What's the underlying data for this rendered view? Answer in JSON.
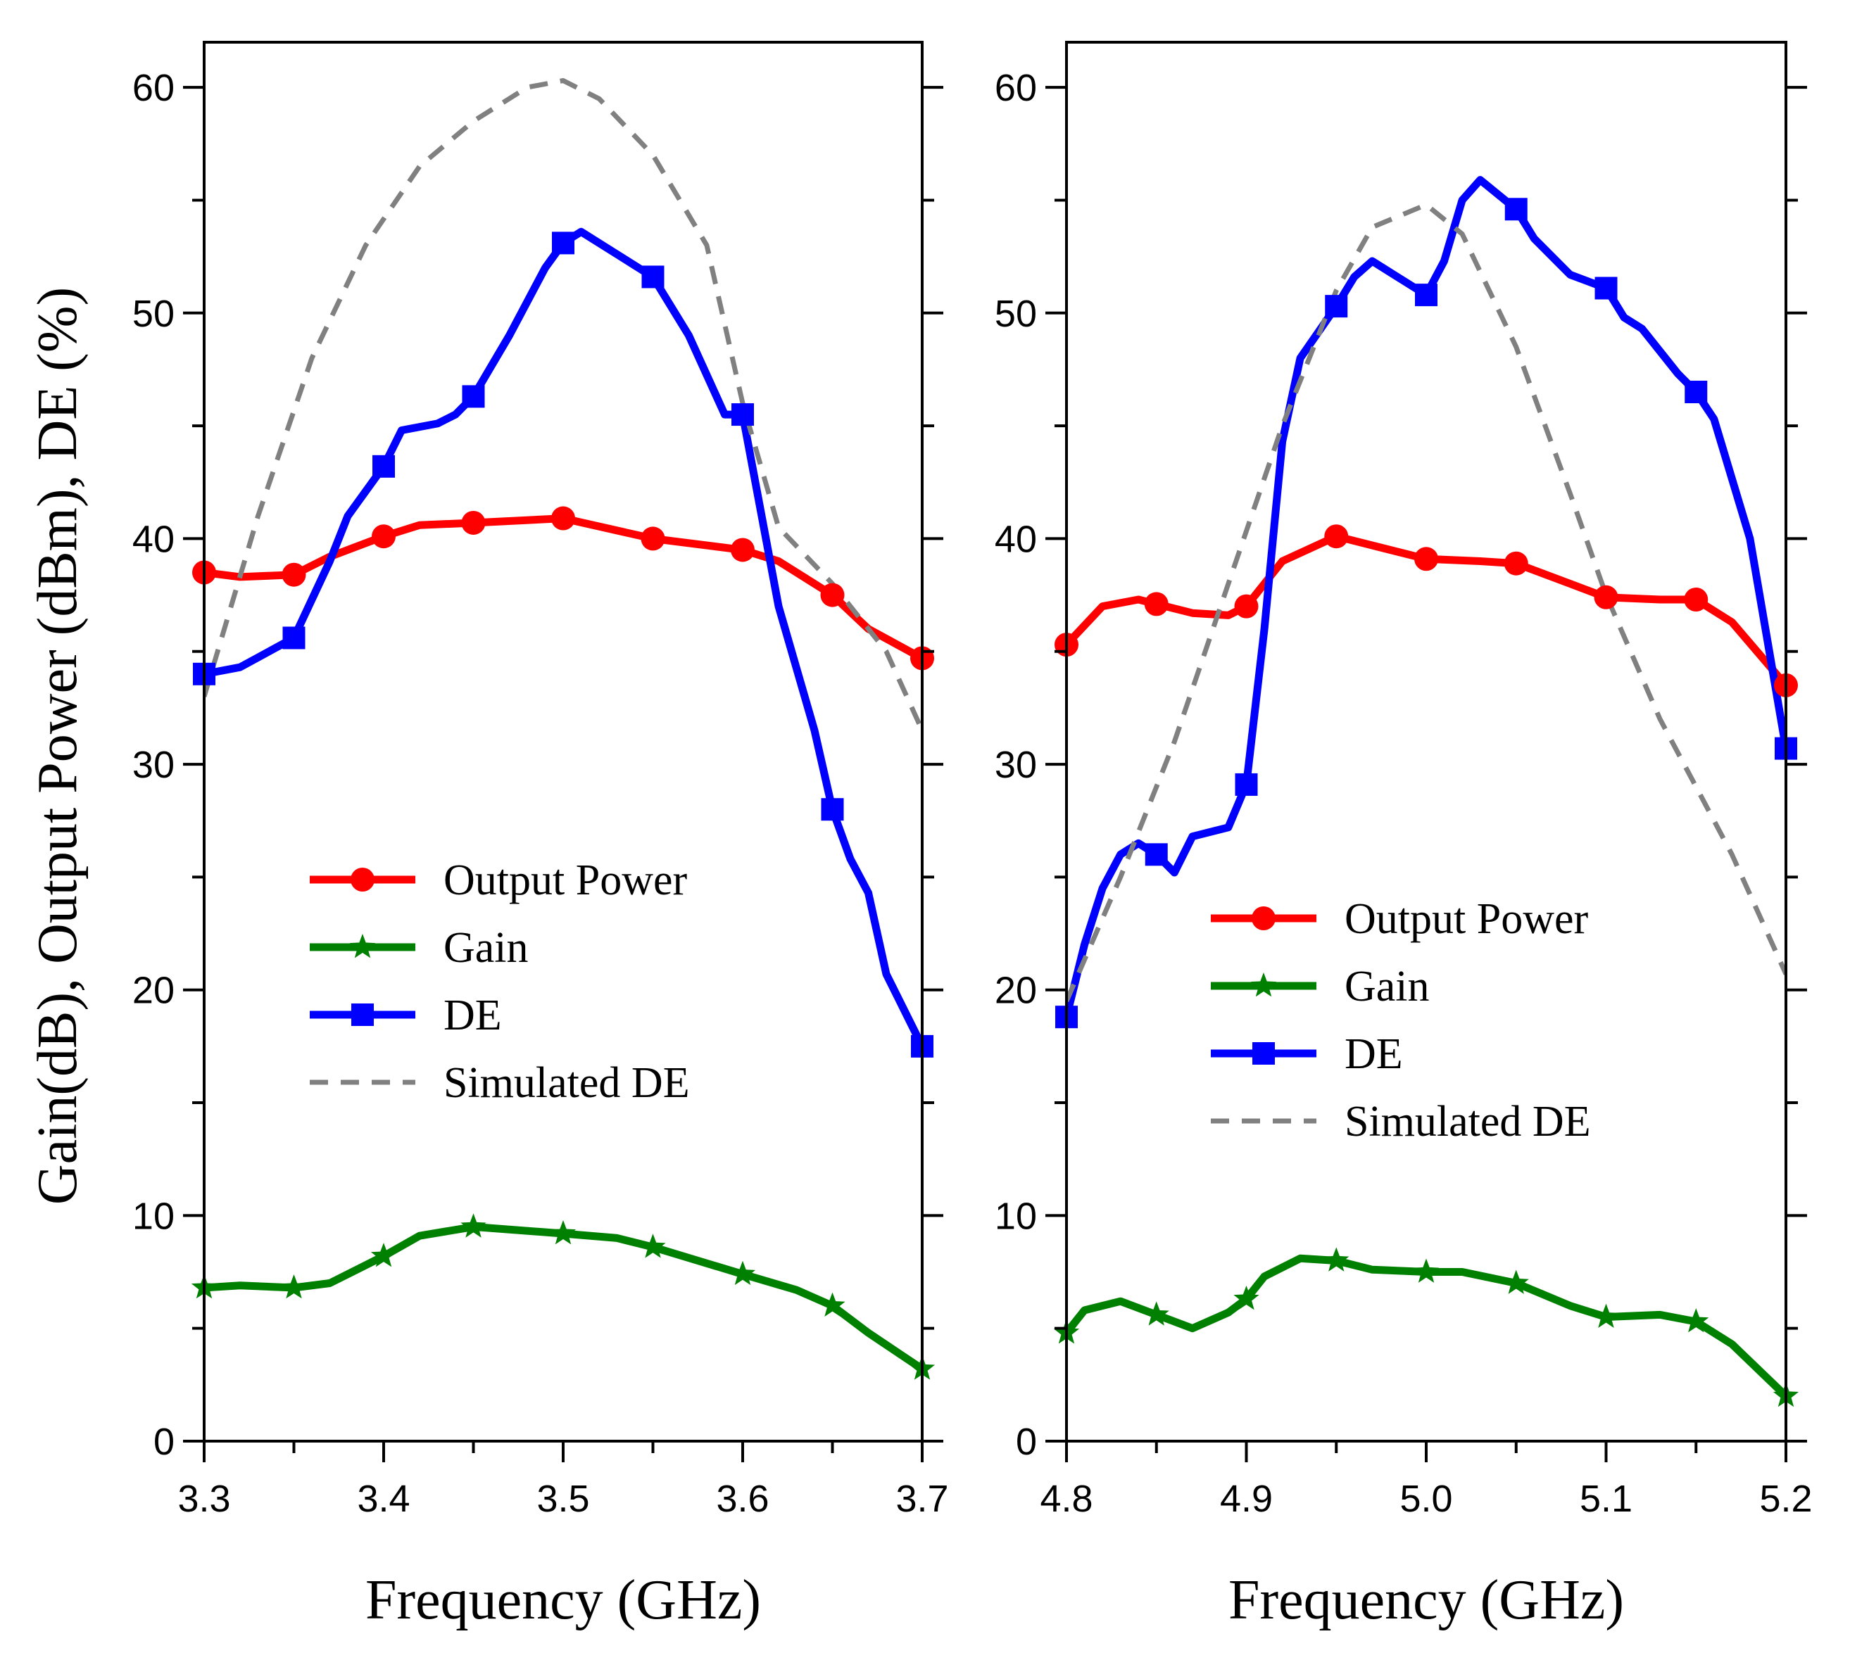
{
  "y_axis_title": "Gain(dB), Output Power (dBm), DE (%)",
  "colors": {
    "output_power": "#ff0000",
    "gain": "#008000",
    "de": "#0000ff",
    "simulated_de": "#808080"
  },
  "chart_data": [
    {
      "type": "line",
      "xlabel": "Frequency (GHz)",
      "ylabel": "Gain(dB), Output Power (dBm), DE (%)",
      "xlim": [
        3.3,
        3.7
      ],
      "ylim": [
        0,
        62
      ],
      "xticks": [
        3.3,
        3.4,
        3.5,
        3.6,
        3.7
      ],
      "xtick_labels": [
        "3.3",
        "3.4",
        "3.5",
        "3.6",
        "3.7"
      ],
      "yticks": [
        0,
        10,
        20,
        30,
        40,
        50,
        60
      ],
      "ytick_labels": [
        "0",
        "10",
        "20",
        "30",
        "40",
        "50",
        "60"
      ],
      "legend": {
        "position": "center-left",
        "entries": [
          "Output Power",
          "Gain",
          "DE",
          "Simulated DE"
        ]
      },
      "series": [
        {
          "name": "Output Power",
          "marker": "circle",
          "x": [
            3.3,
            3.32,
            3.35,
            3.37,
            3.4,
            3.42,
            3.45,
            3.5,
            3.55,
            3.6,
            3.62,
            3.65,
            3.67,
            3.7
          ],
          "values": [
            38.5,
            38.3,
            38.4,
            39.2,
            40.1,
            40.6,
            40.7,
            40.9,
            40.0,
            39.5,
            39.0,
            37.5,
            36.0,
            34.7
          ],
          "marker_x": [
            3.3,
            3.35,
            3.4,
            3.45,
            3.5,
            3.55,
            3.6,
            3.65,
            3.7
          ]
        },
        {
          "name": "Gain",
          "marker": "star",
          "x": [
            3.3,
            3.32,
            3.35,
            3.37,
            3.4,
            3.42,
            3.45,
            3.5,
            3.53,
            3.55,
            3.6,
            3.63,
            3.65,
            3.67,
            3.7
          ],
          "values": [
            6.8,
            6.9,
            6.8,
            7.0,
            8.2,
            9.1,
            9.5,
            9.2,
            9.0,
            8.6,
            7.4,
            6.7,
            6.0,
            4.8,
            3.2
          ],
          "marker_x": [
            3.3,
            3.35,
            3.4,
            3.45,
            3.5,
            3.55,
            3.6,
            3.65,
            3.7
          ]
        },
        {
          "name": "DE",
          "marker": "square",
          "x": [
            3.3,
            3.32,
            3.35,
            3.37,
            3.38,
            3.4,
            3.41,
            3.43,
            3.44,
            3.45,
            3.47,
            3.49,
            3.5,
            3.51,
            3.53,
            3.55,
            3.57,
            3.59,
            3.6,
            3.62,
            3.64,
            3.65,
            3.66,
            3.67,
            3.68,
            3.7
          ],
          "values": [
            34.0,
            34.3,
            35.6,
            39.0,
            41.0,
            43.2,
            44.8,
            45.1,
            45.5,
            46.3,
            49.0,
            52.0,
            53.1,
            53.6,
            52.6,
            51.6,
            49.0,
            45.5,
            45.5,
            37.0,
            31.5,
            28.0,
            25.8,
            24.3,
            20.7,
            17.5
          ],
          "marker_x": [
            3.3,
            3.35,
            3.4,
            3.45,
            3.5,
            3.55,
            3.6,
            3.65,
            3.7
          ]
        },
        {
          "name": "Simulated DE",
          "style": "dashed",
          "x": [
            3.3,
            3.33,
            3.36,
            3.39,
            3.42,
            3.45,
            3.48,
            3.5,
            3.52,
            3.55,
            3.58,
            3.6,
            3.62,
            3.65,
            3.68,
            3.7
          ],
          "values": [
            33.0,
            41.0,
            48.0,
            53.0,
            56.5,
            58.5,
            60.0,
            60.3,
            59.5,
            57.0,
            53.0,
            46.0,
            40.5,
            38.0,
            35.0,
            31.5
          ]
        }
      ]
    },
    {
      "type": "line",
      "xlabel": "Frequency (GHz)",
      "xlim": [
        4.8,
        5.2
      ],
      "ylim": [
        0,
        62
      ],
      "xticks": [
        4.8,
        4.9,
        5.0,
        5.1,
        5.2
      ],
      "xtick_labels": [
        "4.8",
        "4.9",
        "5.0",
        "5.1",
        "5.2"
      ],
      "yticks": [
        0,
        10,
        20,
        30,
        40,
        50,
        60
      ],
      "ytick_labels": [
        "0",
        "10",
        "20",
        "30",
        "40",
        "50",
        "60"
      ],
      "legend": {
        "position": "center-right",
        "entries": [
          "Output Power",
          "Gain",
          "DE",
          "Simulated DE"
        ]
      },
      "series": [
        {
          "name": "Output Power",
          "marker": "circle",
          "x": [
            4.8,
            4.82,
            4.84,
            4.85,
            4.87,
            4.89,
            4.9,
            4.92,
            4.95,
            4.98,
            5.0,
            5.03,
            5.05,
            5.08,
            5.1,
            5.13,
            5.15,
            5.17,
            5.2
          ],
          "values": [
            35.3,
            37.0,
            37.3,
            37.1,
            36.7,
            36.6,
            37.0,
            39.0,
            40.1,
            39.5,
            39.1,
            39.0,
            38.9,
            38.0,
            37.4,
            37.3,
            37.3,
            36.3,
            33.5
          ],
          "marker_x": [
            4.8,
            4.85,
            4.9,
            4.95,
            5.0,
            5.05,
            5.1,
            5.15,
            5.2
          ]
        },
        {
          "name": "Gain",
          "marker": "star",
          "x": [
            4.8,
            4.81,
            4.83,
            4.85,
            4.87,
            4.89,
            4.9,
            4.91,
            4.93,
            4.95,
            4.97,
            5.0,
            5.02,
            5.05,
            5.08,
            5.1,
            5.13,
            5.15,
            5.17,
            5.2
          ],
          "values": [
            4.8,
            5.8,
            6.2,
            5.6,
            5.0,
            5.7,
            6.3,
            7.3,
            8.1,
            8.0,
            7.6,
            7.5,
            7.5,
            7.0,
            6.0,
            5.5,
            5.6,
            5.3,
            4.3,
            2.0
          ],
          "marker_x": [
            4.8,
            4.85,
            4.9,
            4.95,
            5.0,
            5.05,
            5.1,
            5.15,
            5.2
          ]
        },
        {
          "name": "DE",
          "marker": "square",
          "x": [
            4.8,
            4.81,
            4.82,
            4.83,
            4.84,
            4.85,
            4.86,
            4.87,
            4.89,
            4.9,
            4.91,
            4.92,
            4.93,
            4.95,
            4.96,
            4.97,
            4.98,
            5.0,
            5.01,
            5.02,
            5.03,
            5.05,
            5.06,
            5.08,
            5.1,
            5.11,
            5.12,
            5.14,
            5.15,
            5.16,
            5.18,
            5.2
          ],
          "values": [
            18.8,
            22.0,
            24.5,
            26.0,
            26.5,
            26.0,
            25.2,
            26.8,
            27.2,
            29.1,
            36.0,
            44.3,
            48.0,
            50.3,
            51.6,
            52.3,
            51.8,
            50.8,
            52.3,
            55.0,
            55.9,
            54.6,
            53.3,
            51.7,
            51.1,
            49.8,
            49.3,
            47.3,
            46.5,
            45.3,
            40.0,
            30.7
          ],
          "marker_x": [
            4.8,
            4.85,
            4.9,
            4.95,
            5.0,
            5.05,
            5.1,
            5.15,
            5.2
          ]
        },
        {
          "name": "Simulated DE",
          "style": "dashed",
          "x": [
            4.8,
            4.83,
            4.86,
            4.89,
            4.92,
            4.95,
            4.97,
            5.0,
            5.02,
            5.05,
            5.08,
            5.1,
            5.13,
            5.15,
            5.17,
            5.2
          ],
          "values": [
            19.5,
            25.0,
            31.0,
            38.0,
            45.0,
            51.0,
            53.8,
            54.8,
            53.5,
            48.5,
            42.0,
            37.5,
            32.0,
            29.0,
            26.0,
            20.7
          ]
        }
      ]
    }
  ]
}
